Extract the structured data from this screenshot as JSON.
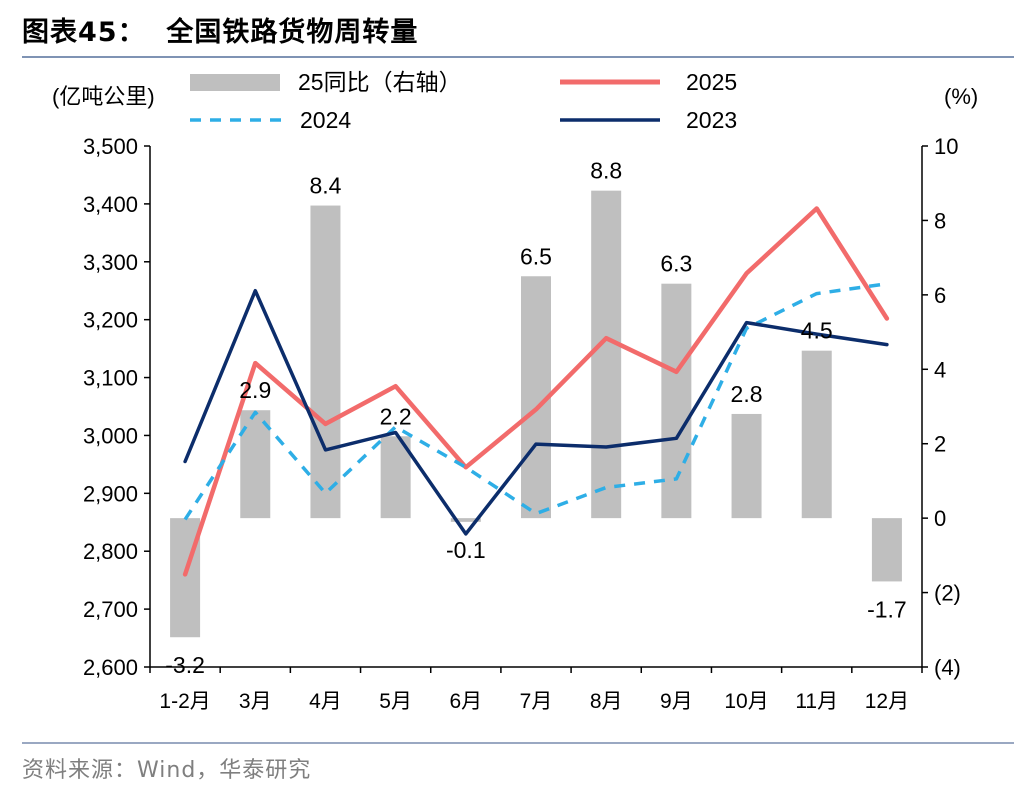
{
  "header": {
    "title": "图表45：  全国铁路货物周转量"
  },
  "footer": {
    "source": "资料来源：Wind，华泰研究"
  },
  "chart_data": {
    "type": "bar+line",
    "categories": [
      "1-2月",
      "3月",
      "4月",
      "5月",
      "6月",
      "7月",
      "8月",
      "9月",
      "10月",
      "11月",
      "12月"
    ],
    "left_axis": {
      "label": "(亿吨公里)",
      "min": 2600,
      "max": 3500,
      "step": 100,
      "ticks": [
        "2,600",
        "2,700",
        "2,800",
        "2,900",
        "3,000",
        "3,100",
        "3,200",
        "3,300",
        "3,400",
        "3,500"
      ]
    },
    "right_axis": {
      "label": "(%)",
      "min": -4,
      "max": 10,
      "step": 2,
      "ticks": [
        "(4)",
        "(2)",
        "0",
        "2",
        "4",
        "6",
        "8",
        "10"
      ]
    },
    "bar_series": {
      "name": "25同比（右轴）",
      "axis": "right",
      "color": "#bfbfbf",
      "values": [
        -3.2,
        2.9,
        8.4,
        2.2,
        -0.1,
        6.5,
        8.8,
        6.3,
        2.8,
        4.5,
        -1.7
      ],
      "labels": [
        "-3.2",
        "2.9",
        "8.4",
        "2.2",
        "-0.1",
        "6.5",
        "8.8",
        "6.3",
        "2.8",
        "4.5",
        "-1.7"
      ]
    },
    "line_series": [
      {
        "name": "2025",
        "axis": "left",
        "color": "#f26b6b",
        "style": "solid",
        "values": [
          2760,
          3125,
          3020,
          3085,
          2945,
          3045,
          3168,
          3110,
          3280,
          3392,
          3202
        ]
      },
      {
        "name": "2024",
        "axis": "left",
        "color": "#2eaee6",
        "style": "dashed",
        "values": [
          2855,
          3040,
          2900,
          3015,
          2945,
          2865,
          2910,
          2925,
          3185,
          3245,
          3262
        ]
      },
      {
        "name": "2023",
        "axis": "left",
        "color": "#0c2d6b",
        "style": "solid",
        "values": [
          2955,
          3250,
          2975,
          3005,
          2830,
          2985,
          2980,
          2995,
          3195,
          3175,
          3157
        ]
      }
    ],
    "legend": [
      "25同比（右轴）",
      "2025",
      "2024",
      "2023"
    ]
  }
}
